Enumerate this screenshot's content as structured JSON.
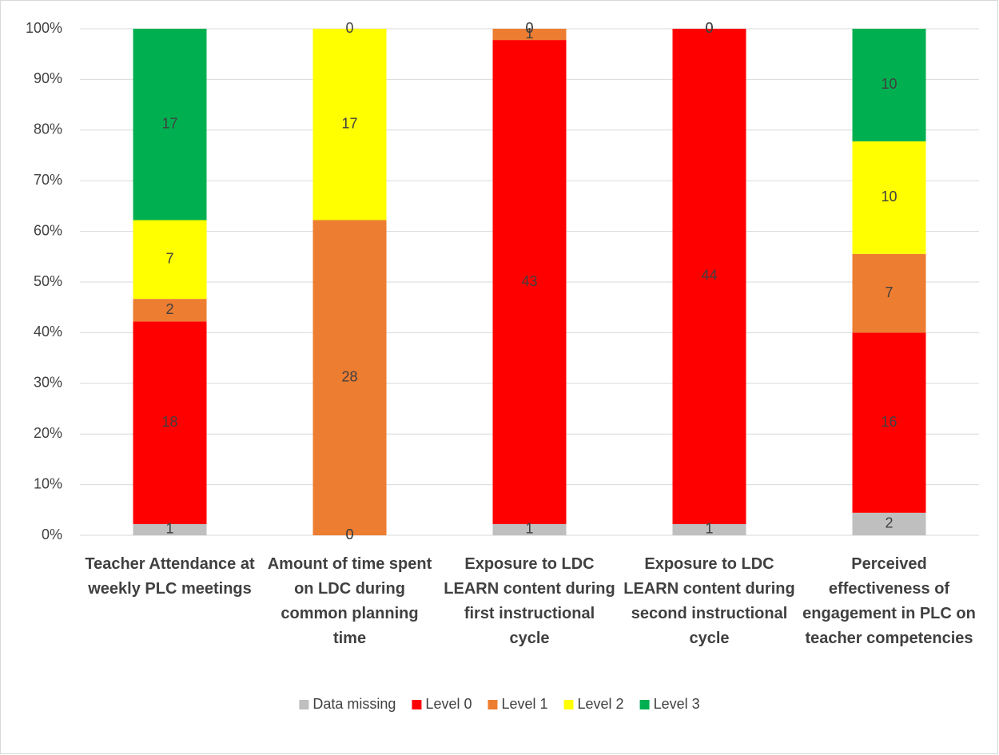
{
  "chart_data": {
    "type": "stacked_percent_bar",
    "categories": [
      "Teacher Attendance at weekly PLC meetings",
      "Amount of time spent on LDC during common planning time",
      "Exposure to LDC LEARN content during first instructional cycle",
      "Exposure to LDC LEARN content during second instructional cycle",
      "Perceived effectiveness of engagement in PLC on teacher competencies"
    ],
    "series": [
      {
        "name": "Data missing",
        "color": "#bfbfbf",
        "values": [
          1,
          0,
          1,
          1,
          2
        ]
      },
      {
        "name": "Level 0",
        "color": "#ff0000",
        "values": [
          18,
          0,
          43,
          44,
          16
        ]
      },
      {
        "name": "Level 1",
        "color": "#ed7d31",
        "values": [
          2,
          28,
          1,
          0,
          7
        ]
      },
      {
        "name": "Level 2",
        "color": "#ffff00",
        "values": [
          7,
          17,
          0,
          0,
          10
        ]
      },
      {
        "name": "Level 3",
        "color": "#00b050",
        "values": [
          17,
          0,
          0,
          0,
          10
        ]
      }
    ],
    "ylim": [
      0,
      100
    ],
    "yticks": [
      {
        "value": 0,
        "label": "0%"
      },
      {
        "value": 10,
        "label": "10%"
      },
      {
        "value": 20,
        "label": "20%"
      },
      {
        "value": 30,
        "label": "30%"
      },
      {
        "value": 40,
        "label": "40%"
      },
      {
        "value": 50,
        "label": "50%"
      },
      {
        "value": 60,
        "label": "60%"
      },
      {
        "value": 70,
        "label": "70%"
      },
      {
        "value": 80,
        "label": "80%"
      },
      {
        "value": 90,
        "label": "90%"
      },
      {
        "value": 100,
        "label": "100%"
      }
    ],
    "grid": true,
    "legend": "bottom"
  }
}
